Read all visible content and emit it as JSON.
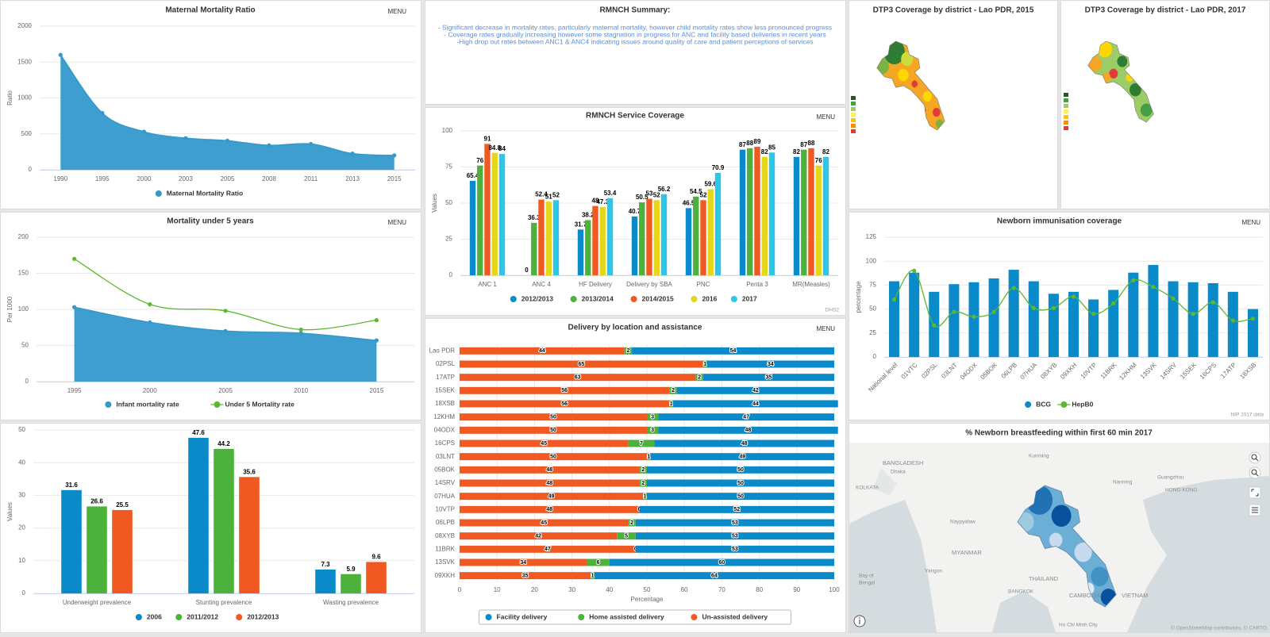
{
  "chart_data": [
    {
      "type": "area",
      "title": "Maternal Mortality Ratio",
      "menu": "MENU",
      "y_label": "Ratio",
      "categories": [
        "1990",
        "1995",
        "2000",
        "2003",
        "2005",
        "2008",
        "2011",
        "2013",
        "2015"
      ],
      "series": [
        {
          "name": "Maternal Mortality Ratio",
          "color": "#3399cc",
          "values": [
            1600,
            790,
            530,
            440,
            405,
            340,
            360,
            225,
            200
          ]
        }
      ],
      "ylim": [
        0,
        2000
      ],
      "yticks": [
        0,
        500,
        1000,
        1500,
        2000
      ],
      "grid": true,
      "legend": "bottom"
    },
    {
      "type": "combo",
      "title": "Mortality under 5 years",
      "menu": "MENU",
      "y_label": "Per 1000",
      "categories": [
        "1995",
        "2000",
        "2005",
        "2010",
        "2015"
      ],
      "series": [
        {
          "name": "Infant mortality rate",
          "type": "area",
          "color": "#3399cc",
          "values": [
            103,
            82,
            70,
            67,
            57
          ]
        },
        {
          "name": "Under 5 Mortality rate",
          "type": "line",
          "color": "#5cb82f",
          "values": [
            170,
            107,
            98,
            72,
            85
          ]
        }
      ],
      "ylim": [
        0,
        200
      ],
      "yticks": [
        0,
        50,
        100,
        150,
        200
      ],
      "grid": true,
      "legend": "bottom"
    },
    {
      "type": "bar",
      "y_label": "Values",
      "data_labels": true,
      "categories": [
        "Underweight prevalence",
        "Stunting prevalence",
        "Wasting prevalence"
      ],
      "series": [
        {
          "name": "2006",
          "color": "#0a8ac8",
          "values": [
            31.6,
            47.6,
            7.3
          ]
        },
        {
          "name": "2011/2012",
          "color": "#4db23c",
          "values": [
            26.6,
            44.2,
            5.9
          ]
        },
        {
          "name": "2012/2013",
          "color": "#f05a22",
          "values": [
            25.5,
            35.6,
            9.6
          ]
        }
      ],
      "ylim": [
        0,
        50
      ],
      "yticks": [
        0,
        10,
        20,
        30,
        40,
        50
      ],
      "grid": true,
      "legend": "bottom"
    },
    {
      "type": "bar",
      "title": "RMNCH Service Coverage",
      "menu": "MENU",
      "y_label": "Values",
      "data_labels": true,
      "credit": "DHS2",
      "categories": [
        "ANC 1",
        "ANC 4",
        "HF Delivery",
        "Delivery by SBA",
        "PNC",
        "Penta 3",
        "MR(Measles)"
      ],
      "series": [
        {
          "name": "2012/2013",
          "color": "#0a8ac8",
          "values": [
            65.4,
            0,
            31.7,
            40.7,
            46.5,
            87,
            82
          ]
        },
        {
          "name": "2013/2014",
          "color": "#4db23c",
          "values": [
            76,
            36.3,
            38.2,
            50.5,
            54.5,
            88,
            87
          ]
        },
        {
          "name": "2014/2015",
          "color": "#f05a22",
          "values": [
            91,
            52.4,
            48,
            53,
            52,
            89,
            88
          ]
        },
        {
          "name": "2016",
          "color": "#e6d61a",
          "values": [
            84.8,
            51,
            47.3,
            52,
            59.6,
            82,
            76
          ]
        },
        {
          "name": "2017",
          "color": "#2dc6e8",
          "values": [
            84,
            52,
            53.4,
            56.2,
            70.9,
            85,
            82
          ]
        }
      ],
      "ylim": [
        0,
        100
      ],
      "yticks": [
        0,
        25,
        50,
        75,
        100
      ],
      "grid": true,
      "legend": "bottom"
    },
    {
      "type": "bar",
      "stacked": true,
      "horizontal": true,
      "title": "Delivery by location and assistance",
      "menu": "MENU",
      "x_label": "Percentage",
      "data_labels": true,
      "categories": [
        "Lao PDR",
        "02PSL",
        "17ATP",
        "15SEK",
        "18XSB",
        "12KHM",
        "04ODX",
        "16CPS",
        "03LNT",
        "05BOK",
        "14SRV",
        "07HUA",
        "10VTP",
        "06LPB",
        "08XYB",
        "11BRK",
        "13SVK",
        "09XKH"
      ],
      "series": [
        {
          "name": "Facility delivery",
          "color": "#0a8ac8",
          "values": [
            54,
            34,
            35,
            42,
            44,
            47,
            48,
            48,
            49,
            50,
            50,
            50,
            52,
            53,
            53,
            53,
            60,
            64
          ]
        },
        {
          "name": "Home assisted delivery",
          "color": "#4db23c",
          "values": [
            2,
            1,
            2,
            2,
            1,
            3,
            3,
            7,
            1,
            2,
            2,
            1,
            0,
            2,
            5,
            0,
            6,
            1
          ]
        },
        {
          "name": "Un-assisted delivery",
          "color": "#f05a22",
          "values": [
            44,
            65,
            63,
            56,
            56,
            50,
            50,
            45,
            50,
            48,
            48,
            49,
            48,
            45,
            42,
            47,
            34,
            35
          ]
        }
      ],
      "xlim": [
        0,
        100
      ],
      "xticks": [
        0,
        10,
        20,
        30,
        40,
        50,
        60,
        70,
        80,
        90,
        100
      ],
      "grid": true,
      "legend": "bottom"
    },
    {
      "type": "combo",
      "title": "Newborn immunisation coverage",
      "menu": "MENU",
      "y_label": "percentage",
      "credit": "NIP 2017 data",
      "categories": [
        "National level",
        "01VTC",
        "02PSL",
        "03LNT",
        "04ODX",
        "05BOK",
        "06LPB",
        "07HUA",
        "08XYB",
        "09XKH",
        "10VTP",
        "11BRK",
        "12KHM",
        "13SVK",
        "14SRV",
        "15SEK",
        "16CPS",
        "17ATP",
        "18XSB"
      ],
      "series": [
        {
          "name": "BCG",
          "type": "bar",
          "color": "#0a8ac8",
          "values": [
            79,
            88,
            68,
            76,
            78,
            82,
            91,
            79,
            66,
            68,
            60,
            70,
            88,
            96,
            79,
            78,
            77,
            68,
            50
          ]
        },
        {
          "name": "HepB0",
          "type": "line",
          "color": "#5cb82f",
          "values": [
            60,
            90,
            33,
            47,
            42,
            47,
            72,
            51,
            51,
            63,
            45,
            56,
            80,
            73,
            61,
            45,
            57,
            38,
            40
          ]
        }
      ],
      "ylim": [
        0,
        125
      ],
      "yticks": [
        0,
        25,
        50,
        75,
        100,
        125
      ],
      "grid": true,
      "legend": "bottom"
    }
  ],
  "summary": {
    "title": "RMNCH Summary:",
    "lines": [
      "- Significant decrease in mortality rates, particularly maternal mortality, however child mortality rates show less pronounced progress",
      "- Coverage rates gradually increasing however some stagnation in progress for ANC and facility based deliveries in recent years",
      "-High drop out rates between ANC1 & ANC4 indicating issues around quality of care and patient perceptions of services"
    ]
  },
  "maps": [
    {
      "title": "DTP3 Coverage by district - Lao PDR, 2015"
    },
    {
      "title": "DTP3 Coverage by district - Lao PDR, 2017"
    },
    {
      "title": "% Newborn breastfeeding within first 60 min 2017",
      "labels": [
        "BANGLADESH",
        "Dhaka",
        "KOLKATA",
        "Kunming",
        "Nanning",
        "Guangzhou",
        "HONG KONG",
        "Naypyidaw",
        "MYANMAR",
        "Yangon",
        "Bay of",
        "Bengal",
        "THAILAND",
        "BANGKOK",
        "CAMBODIA",
        "VIETNAM",
        "Ho Chi Minh City"
      ],
      "attribution": "© OpenStreetMap contributors, © CARTO"
    }
  ]
}
